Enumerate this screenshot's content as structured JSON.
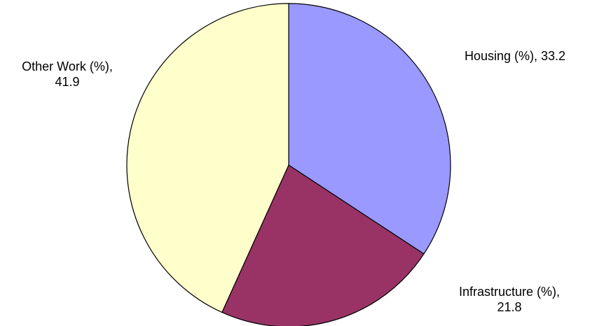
{
  "chart_data": {
    "type": "pie",
    "slices": [
      {
        "label": "Housing (%)",
        "value": 33.2,
        "color": "#9999ff",
        "label_lines": [
          "Housing (%), 33.2"
        ]
      },
      {
        "label": "Infrastructure (%)",
        "value": 21.8,
        "color": "#993366",
        "label_lines": [
          "Infrastructure (%),",
          "21.8"
        ]
      },
      {
        "label": "Other Work (%)",
        "value": 41.9,
        "color": "#ffffcc",
        "label_lines": [
          "Other Work (%),",
          "41.9"
        ]
      }
    ],
    "start_angle_deg": 0,
    "direction": "clockwise",
    "legend": "none"
  }
}
